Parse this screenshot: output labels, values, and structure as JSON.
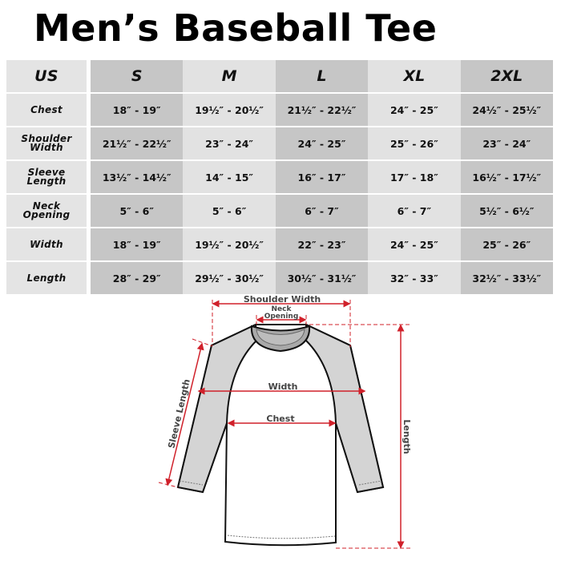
{
  "title": "Men’s Baseball Tee",
  "table": {
    "corner": "US",
    "sizes": [
      "S",
      "M",
      "L",
      "XL",
      "2XL"
    ],
    "rows": [
      {
        "label": "Chest",
        "values": [
          "18″ - 19″",
          "19½″ - 20½″",
          "21½″ - 22½″",
          "24″ - 25″",
          "24½″ - 25½″"
        ]
      },
      {
        "label": "Shoulder Width",
        "values": [
          "21½″ - 22½″",
          "23″ - 24″",
          "24″ - 25″",
          "25″ - 26″",
          "23″ - 24″"
        ]
      },
      {
        "label": "Sleeve Length",
        "values": [
          "13½″ - 14½″",
          "14″ - 15″",
          "16″ - 17″",
          "17″ - 18″",
          "16½″ - 17½″"
        ]
      },
      {
        "label": "Neck Opening",
        "values": [
          "5″ - 6″",
          "5″ - 6″",
          "6″ - 7″",
          "6″ - 7″",
          "5½″ - 6½″"
        ]
      },
      {
        "label": "Width",
        "values": [
          "18″ - 19″",
          "19½″ - 20½″",
          "22″ - 23″",
          "24″ - 25″",
          "25″ - 26″"
        ]
      },
      {
        "label": "Length",
        "values": [
          "28″ - 29″",
          "29½″ - 30½″",
          "30½″ - 31½″",
          "32″ - 33″",
          "32½″ - 33½″"
        ]
      }
    ]
  },
  "diagram": {
    "shoulder_width": "Shoulder Width",
    "neck_line1": "Neck",
    "neck_line2": "Opening",
    "width": "Width",
    "chest": "Chest",
    "sleeve_length": "Sleeve Length",
    "length": "Length",
    "colors": {
      "measure": "#d0202a",
      "sleeve": "#d4d4d4",
      "collar": "#a9a9a9"
    }
  }
}
